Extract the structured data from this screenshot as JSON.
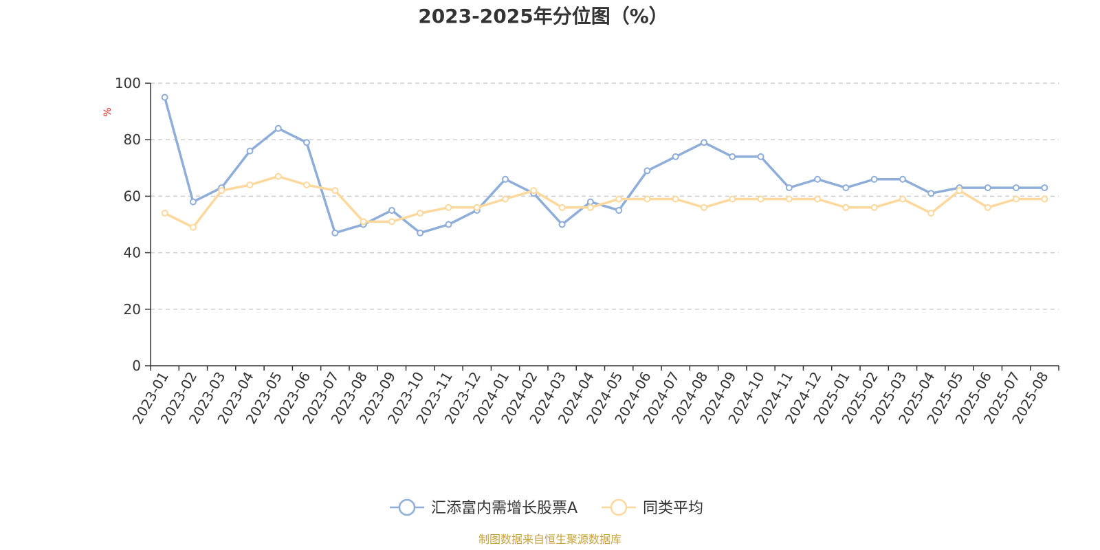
{
  "chart_data": {
    "type": "line",
    "title": "2023-2025年分位图（%）",
    "ylabel": "%",
    "ylim": [
      0,
      100
    ],
    "yticks": [
      "0",
      "20",
      "40",
      "60",
      "80",
      "100"
    ],
    "grid": "horizontal dashed",
    "legend_position": "bottom",
    "categories": [
      "2023-01",
      "2023-02",
      "2023-03",
      "2023-04",
      "2023-05",
      "2023-06",
      "2023-07",
      "2023-08",
      "2023-09",
      "2023-10",
      "2023-11",
      "2023-12",
      "2024-01",
      "2024-02",
      "2024-03",
      "2024-04",
      "2024-05",
      "2024-06",
      "2024-07",
      "2024-08",
      "2024-09",
      "2024-10",
      "2024-11",
      "2024-12",
      "2025-01",
      "2025-02",
      "2025-03",
      "2025-04",
      "2025-05",
      "2025-06",
      "2025-07",
      "2025-08"
    ],
    "series": [
      {
        "name": "汇添富内需增长股票A",
        "color": "#8eadd9",
        "values": [
          95,
          58,
          63,
          76,
          84,
          79,
          47,
          50,
          55,
          47,
          50,
          55,
          66,
          61,
          50,
          58,
          55,
          69,
          74,
          79,
          74,
          74,
          63,
          66,
          63,
          66,
          66,
          61,
          63,
          63,
          63,
          63
        ]
      },
      {
        "name": "同类平均",
        "color": "#fdd89c",
        "values": [
          54,
          49,
          62,
          64,
          67,
          64,
          62,
          51,
          51,
          54,
          56,
          56,
          59,
          62,
          56,
          56,
          59,
          59,
          59,
          56,
          59,
          59,
          59,
          59,
          56,
          56,
          59,
          54,
          62,
          56,
          59,
          59
        ]
      }
    ],
    "source": "制图数据来自恒生聚源数据库",
    "source_color": "#c8a23a",
    "unit_color": "#e02020"
  }
}
